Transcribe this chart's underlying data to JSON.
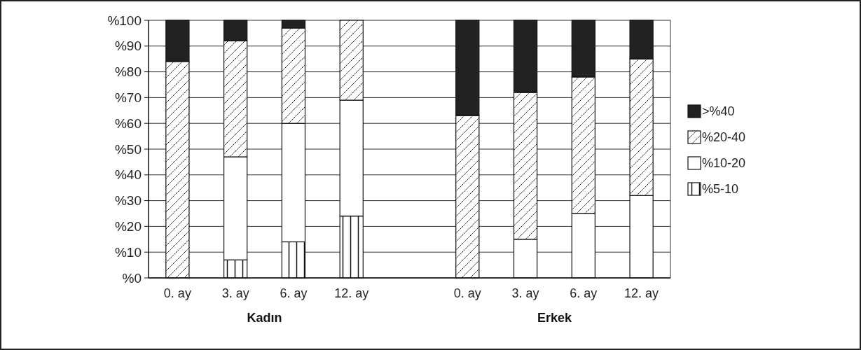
{
  "chart_data": {
    "type": "bar",
    "stacked": true,
    "categories": [
      "0. ay",
      "3. ay",
      "6. ay",
      "12. ay",
      null,
      "0. ay",
      "3. ay",
      "6. ay",
      "12. ay"
    ],
    "series": [
      {
        "name": "%5-10",
        "color": "#111111",
        "values": [
          0,
          7,
          14,
          24,
          null,
          0,
          0,
          0,
          0
        ]
      },
      {
        "name": "%10-20",
        "color": "#ffffff",
        "values": [
          0,
          40,
          46,
          45,
          null,
          0,
          15,
          25,
          32
        ]
      },
      {
        "name": "%20-40",
        "color": "#111111",
        "values": [
          84,
          45,
          37,
          31,
          null,
          63,
          57,
          53,
          53
        ]
      },
      {
        "name": ">%40",
        "color": "#222222",
        "values": [
          16,
          8,
          3,
          0,
          null,
          37,
          28,
          22,
          15
        ]
      }
    ],
    "ylim": [
      0,
      100
    ],
    "yticks": [
      {
        "value": 0,
        "label": "%0"
      },
      {
        "value": 10,
        "label": "%10"
      },
      {
        "value": 20,
        "label": "%20"
      },
      {
        "value": 30,
        "label": "%30"
      },
      {
        "value": 40,
        "label": "%40"
      },
      {
        "value": 50,
        "label": "%50"
      },
      {
        "value": 60,
        "label": "%60"
      },
      {
        "value": 70,
        "label": "%70"
      },
      {
        "value": 80,
        "label": "%80"
      },
      {
        "value": 90,
        "label": "%90"
      },
      {
        "value": 100,
        "label": "%100"
      }
    ],
    "grid": "y",
    "legend": "right",
    "annotations": [
      "Kadın",
      "Erkek"
    ]
  }
}
